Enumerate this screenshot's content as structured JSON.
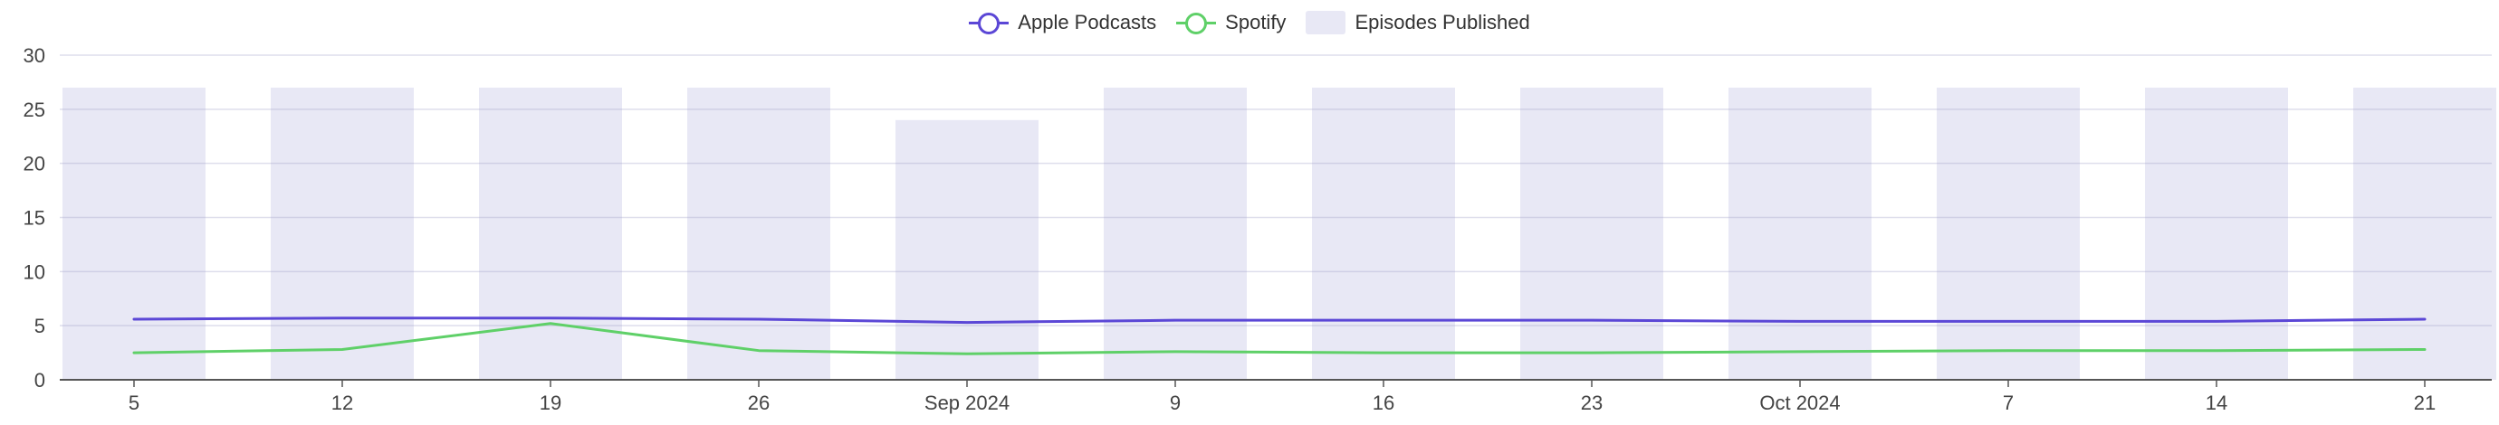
{
  "chart_data": {
    "type": "bar",
    "x_type": "date",
    "x_tick_labels": [
      "5",
      "12",
      "19",
      "26",
      "Sep 2024",
      "9",
      "16",
      "23",
      "Oct 2024",
      "7",
      "14",
      "21"
    ],
    "x": [
      "2024-08-05",
      "2024-08-12",
      "2024-08-19",
      "2024-08-26",
      "2024-09-02",
      "2024-09-09",
      "2024-09-16",
      "2024-09-23",
      "2024-09-30",
      "2024-10-07",
      "2024-10-14",
      "2024-10-21"
    ],
    "y_ticks": [
      0,
      5,
      10,
      15,
      20,
      25,
      30
    ],
    "ylim": [
      0,
      30
    ],
    "grid": true,
    "legend_position": "top-center",
    "title": "",
    "xlabel": "",
    "ylabel": "",
    "series": [
      {
        "name": "Apple Podcasts",
        "type": "line",
        "color": "#5b47d6",
        "values": [
          5.6,
          5.7,
          5.7,
          5.6,
          5.3,
          5.5,
          5.5,
          5.5,
          5.4,
          5.4,
          5.4,
          5.6
        ]
      },
      {
        "name": "Spotify",
        "type": "line",
        "color": "#5fd068",
        "values": [
          2.5,
          2.8,
          5.2,
          2.7,
          2.4,
          2.6,
          2.5,
          2.5,
          2.6,
          2.7,
          2.7,
          2.8
        ]
      },
      {
        "name": "Episodes Published",
        "type": "bar",
        "color": "#e8e8f5",
        "values": [
          27,
          27,
          27,
          27,
          24,
          27,
          27,
          27,
          27,
          27,
          27,
          27
        ]
      }
    ]
  }
}
